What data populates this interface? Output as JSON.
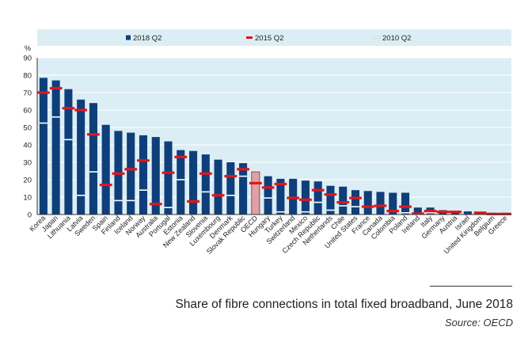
{
  "caption": {
    "title": "Share of fibre connections in total fixed broadband, June 2018",
    "source": "Source: OECD"
  },
  "colors": {
    "panel": "#dceef5",
    "bar_2018": "#0f3f7a",
    "bar_oecd": "#e0a0a4",
    "bar_oecd_edge": "#7a2a34",
    "marker_2015": "#e0161c",
    "marker_2010": "#ffffff",
    "axis": "#333333",
    "grid": "#ffffff"
  },
  "chart_data": {
    "type": "bar",
    "ylabel": "%",
    "ylim": [
      0,
      90
    ],
    "yticks": [
      0,
      10,
      20,
      30,
      40,
      50,
      60,
      70,
      80,
      90
    ],
    "legend_position": "top",
    "legend": [
      {
        "name": "2018 Q2",
        "marker": "bar"
      },
      {
        "name": "2015 Q2",
        "marker": "red-dash"
      },
      {
        "name": "2010 Q2",
        "marker": "white-dash"
      }
    ],
    "highlight_category": "OECD",
    "categories": [
      "Korea",
      "Japan",
      "Lithuania",
      "Latvia",
      "Sweden",
      "Spain",
      "Finland",
      "Iceland",
      "Norway",
      "Australia",
      "Portugal",
      "Estonia",
      "New Zealand",
      "Slovenia",
      "Luxembourg",
      "Denmark",
      "Slovak Republic",
      "OECD",
      "Hungary",
      "Turkey",
      "Switzerland",
      "Mexico",
      "Czech Republic",
      "Netherlands",
      "Chile",
      "United States",
      "France",
      "Canada",
      "Colombia",
      "Poland",
      "Ireland",
      "Italy",
      "Germany",
      "Austria",
      "Israel",
      "United Kingdom",
      "Belgium",
      "Greece"
    ],
    "series": [
      {
        "name": "2018 Q2",
        "values": [
          78.5,
          77,
          72,
          66,
          64,
          51.5,
          48,
          47,
          45.5,
          44.5,
          42,
          37,
          36.5,
          34.5,
          31.5,
          30,
          29.5,
          24.5,
          22,
          20.5,
          20.5,
          19.5,
          19,
          16.5,
          16,
          14,
          13.5,
          13,
          12.5,
          12.5,
          4,
          4,
          2.5,
          2,
          1.8,
          1.5,
          1,
          1
        ]
      },
      {
        "name": "2015 Q2",
        "values": [
          70,
          72.5,
          61,
          60,
          46,
          17,
          23.5,
          26,
          31,
          6,
          24,
          33,
          7.5,
          23.5,
          11,
          22,
          26,
          18,
          15.5,
          17.5,
          9.5,
          8.5,
          14,
          11.5,
          7,
          9.5,
          4.5,
          5,
          2,
          4.5,
          0.5,
          2,
          1.5,
          1.5,
          null,
          1,
          0.3,
          0.3
        ]
      },
      {
        "name": "2010 Q2",
        "values": [
          52.5,
          56,
          43,
          11,
          24.5,
          null,
          8,
          8,
          14,
          null,
          4,
          20,
          null,
          13,
          null,
          11,
          22,
          null,
          9.5,
          1.5,
          null,
          1.5,
          7,
          2.5,
          5,
          4.5,
          null,
          null,
          null,
          1,
          null,
          1,
          null,
          null,
          null,
          null,
          null,
          null
        ]
      }
    ]
  }
}
